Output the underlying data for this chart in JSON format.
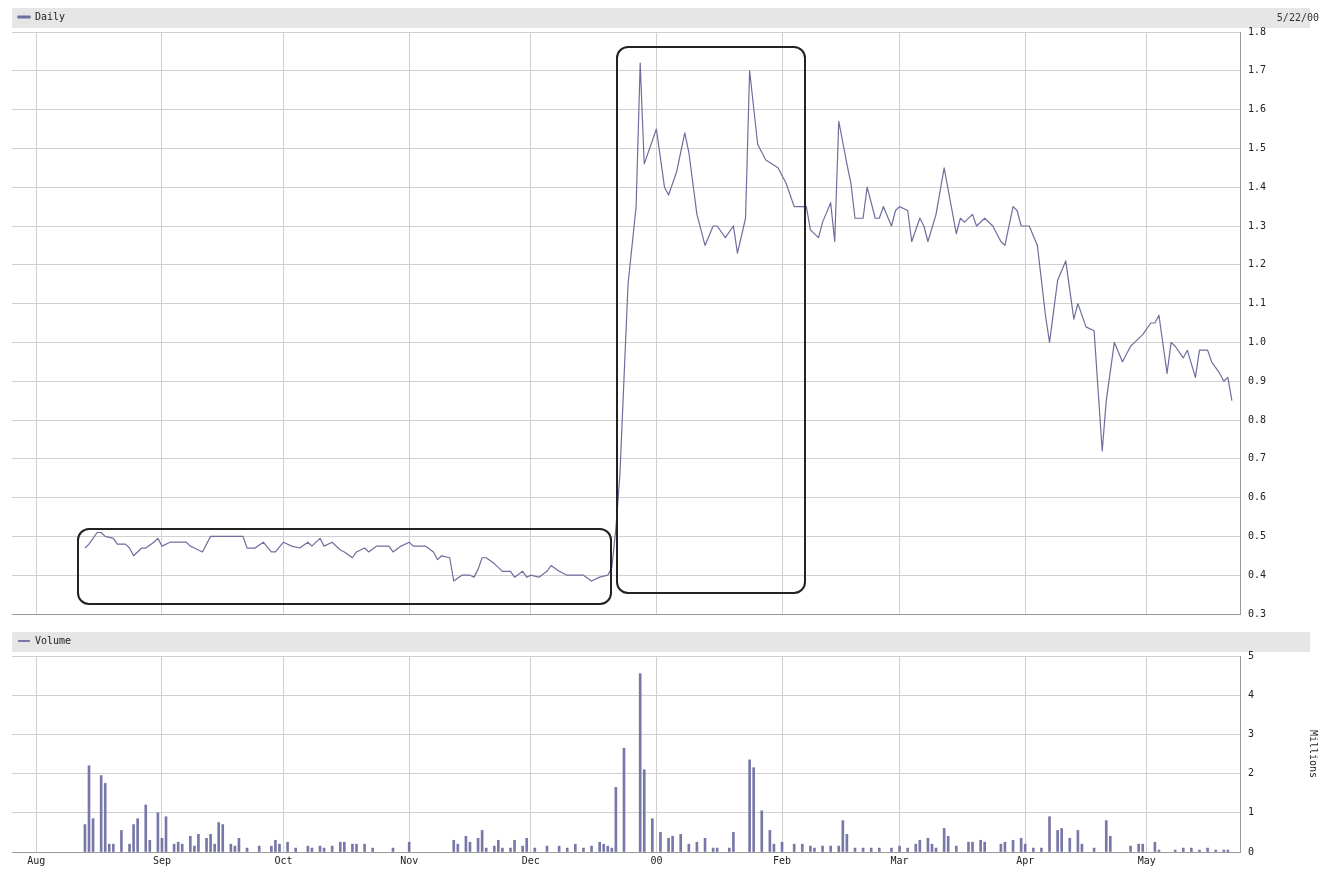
{
  "chart_data": [
    {
      "type": "line",
      "annotations": [
        "5/22/00"
      ],
      "legend": "top left",
      "grid": true,
      "tick_labels": "y",
      "marker": "none",
      "line_style": "solid",
      "xlim": [
        "1999-07-26",
        "2000-05-24"
      ],
      "xticks": [
        {
          "value": "1999-08-01",
          "label": null
        },
        {
          "value": "1999-09-01",
          "label": null
        },
        {
          "value": "1999-10-01",
          "label": null
        },
        {
          "value": "1999-11-01",
          "label": null
        },
        {
          "value": "1999-12-01",
          "label": null
        },
        {
          "value": "2000-01-01",
          "label": null
        },
        {
          "value": "2000-02-01",
          "label": null
        },
        {
          "value": "2000-03-01",
          "label": null
        },
        {
          "value": "2000-04-01",
          "label": null
        },
        {
          "value": "2000-05-01",
          "label": null
        }
      ],
      "ylim": [
        0.3,
        1.8
      ],
      "yticks": [
        0.3,
        0.4,
        0.5,
        0.6,
        0.7,
        0.8,
        0.9,
        {
          "value": 1.0,
          "label": "1.0"
        },
        1.1,
        1.2,
        1.3,
        1.4,
        1.5,
        1.6,
        1.7,
        1.8
      ],
      "series": [
        {
          "name": "Daily",
          "color": "#6e6e9e",
          "x": [
            "1999-08-13",
            "1999-08-14",
            "1999-08-16",
            "1999-08-17",
            "1999-08-18",
            "1999-08-20",
            "1999-08-21",
            "1999-08-23",
            "1999-08-24",
            "1999-08-25",
            "1999-08-27",
            "1999-08-28",
            "1999-08-30",
            "1999-08-31",
            "1999-09-01",
            "1999-09-03",
            "1999-09-07",
            "1999-09-08",
            "1999-09-09",
            "1999-09-11",
            "1999-09-13",
            "1999-09-15",
            "1999-09-17",
            "1999-09-21",
            "1999-09-22",
            "1999-09-24",
            "1999-09-26",
            "1999-09-28",
            "1999-09-29",
            "1999-10-01",
            "1999-10-03",
            "1999-10-05",
            "1999-10-07",
            "1999-10-08",
            "1999-10-10",
            "1999-10-11",
            "1999-10-13",
            "1999-10-15",
            "1999-10-16",
            "1999-10-18",
            "1999-10-19",
            "1999-10-21",
            "1999-10-22",
            "1999-10-24",
            "1999-10-27",
            "1999-10-28",
            "1999-10-30",
            "1999-11-01",
            "1999-11-02",
            "1999-11-05",
            "1999-11-07",
            "1999-11-08",
            "1999-11-09",
            "1999-11-11",
            "1999-11-12",
            "1999-11-14",
            "1999-11-16",
            "1999-11-17",
            "1999-11-18",
            "1999-11-19",
            "1999-11-20",
            "1999-11-22",
            "1999-11-24",
            "1999-11-26",
            "1999-11-27",
            "1999-11-29",
            "1999-11-30",
            "1999-12-01",
            "1999-12-03",
            "1999-12-05",
            "1999-12-06",
            "1999-12-08",
            "1999-12-10",
            "1999-12-14",
            "1999-12-16",
            "1999-12-18",
            "1999-12-20",
            "1999-12-21",
            "1999-12-22",
            "1999-12-23",
            "1999-12-25",
            "1999-12-27",
            "1999-12-28",
            "1999-12-29",
            "2000-01-01",
            "2000-01-03",
            "2000-01-04",
            "2000-01-06",
            "2000-01-08",
            "2000-01-09",
            "2000-01-11",
            "2000-01-13",
            "2000-01-15",
            "2000-01-16",
            "2000-01-18",
            "2000-01-20",
            "2000-01-21",
            "2000-01-23",
            "2000-01-24",
            "2000-01-26",
            "2000-01-28",
            "2000-01-31",
            "2000-02-02",
            "2000-02-04",
            "2000-02-07",
            "2000-02-08",
            "2000-02-10",
            "2000-02-11",
            "2000-02-13",
            "2000-02-14",
            "2000-02-15",
            "2000-02-17",
            "2000-02-18",
            "2000-02-19",
            "2000-02-21",
            "2000-02-22",
            "2000-02-24",
            "2000-02-25",
            "2000-02-26",
            "2000-02-28",
            "2000-02-29",
            "2000-03-01",
            "2000-03-03",
            "2000-03-04",
            "2000-03-06",
            "2000-03-07",
            "2000-03-08",
            "2000-03-10",
            "2000-03-12",
            "2000-03-15",
            "2000-03-16",
            "2000-03-17",
            "2000-03-19",
            "2000-03-20",
            "2000-03-22",
            "2000-03-24",
            "2000-03-26",
            "2000-03-27",
            "2000-03-29",
            "2000-03-30",
            "2000-03-31",
            "2000-04-02",
            "2000-04-04",
            "2000-04-06",
            "2000-04-07",
            "2000-04-09",
            "2000-04-11",
            "2000-04-13",
            "2000-04-14",
            "2000-04-16",
            "2000-04-18",
            "2000-04-20",
            "2000-04-21",
            "2000-04-23",
            "2000-04-25",
            "2000-04-27",
            "2000-04-28",
            "2000-04-30",
            "2000-05-02",
            "2000-05-03",
            "2000-05-04",
            "2000-05-06",
            "2000-05-07",
            "2000-05-08",
            "2000-05-10",
            "2000-05-11",
            "2000-05-13",
            "2000-05-14",
            "2000-05-16",
            "2000-05-17",
            "2000-05-19",
            "2000-05-20",
            "2000-05-21",
            "2000-05-22"
          ],
          "values": [
            0.47,
            0.48,
            0.51,
            0.51,
            0.5,
            0.495,
            0.48,
            0.48,
            0.47,
            0.45,
            0.47,
            0.47,
            0.485,
            0.495,
            0.475,
            0.485,
            0.485,
            0.475,
            0.47,
            0.46,
            0.5,
            0.5,
            0.5,
            0.5,
            0.47,
            0.47,
            0.485,
            0.46,
            0.46,
            0.485,
            0.475,
            0.47,
            0.485,
            0.475,
            0.495,
            0.475,
            0.485,
            0.465,
            0.46,
            0.445,
            0.46,
            0.47,
            0.46,
            0.475,
            0.475,
            0.46,
            0.475,
            0.485,
            0.475,
            0.475,
            0.46,
            0.44,
            0.45,
            0.445,
            0.385,
            0.4,
            0.4,
            0.395,
            0.415,
            0.445,
            0.445,
            0.43,
            0.41,
            0.41,
            0.395,
            0.41,
            0.395,
            0.4,
            0.395,
            0.41,
            0.425,
            0.41,
            0.4,
            0.4,
            0.385,
            0.395,
            0.4,
            0.42,
            0.52,
            0.66,
            1.15,
            1.35,
            1.72,
            1.46,
            1.55,
            1.4,
            1.38,
            1.44,
            1.54,
            1.49,
            1.33,
            1.25,
            1.3,
            1.3,
            1.27,
            1.3,
            1.23,
            1.32,
            1.7,
            1.51,
            1.47,
            1.45,
            1.41,
            1.35,
            1.35,
            1.29,
            1.27,
            1.31,
            1.36,
            1.26,
            1.57,
            1.46,
            1.41,
            1.32,
            1.32,
            1.4,
            1.32,
            1.32,
            1.35,
            1.3,
            1.34,
            1.35,
            1.34,
            1.26,
            1.32,
            1.3,
            1.26,
            1.33,
            1.45,
            1.28,
            1.32,
            1.31,
            1.33,
            1.3,
            1.32,
            1.3,
            1.26,
            1.25,
            1.35,
            1.34,
            1.3,
            1.3,
            1.25,
            1.07,
            1.0,
            1.16,
            1.21,
            1.06,
            1.1,
            1.04,
            1.03,
            0.72,
            0.85,
            1.0,
            0.95,
            0.99,
            1.0,
            1.02,
            1.05,
            1.05,
            1.07,
            0.92,
            1.0,
            0.99,
            0.96,
            0.98,
            0.91,
            0.98,
            0.98,
            0.95,
            0.92,
            0.9,
            0.91,
            0.85
          ]
        }
      ]
    },
    {
      "type": "bar",
      "ylabel": "Millions",
      "legend": "top left",
      "grid": true,
      "xlim": [
        "1999-07-26",
        "2000-05-24"
      ],
      "xticks": [
        {
          "value": "1999-08-01",
          "label": "Aug"
        },
        {
          "value": "1999-09-01",
          "label": "Sep"
        },
        {
          "value": "1999-10-01",
          "label": "Oct"
        },
        {
          "value": "1999-11-01",
          "label": "Nov"
        },
        {
          "value": "1999-12-01",
          "label": "Dec"
        },
        {
          "value": "2000-01-01",
          "label": "00"
        },
        {
          "value": "2000-02-01",
          "label": "Feb"
        },
        {
          "value": "2000-03-01",
          "label": "Mar"
        },
        {
          "value": "2000-04-01",
          "label": "Apr"
        },
        {
          "value": "2000-05-01",
          "label": "May"
        }
      ],
      "ylim": [
        0,
        5
      ],
      "yticks": [
        0,
        1,
        2,
        3,
        4,
        5
      ],
      "series": [
        {
          "name": "Volume",
          "color": "#7878a8",
          "x": [
            "1999-08-13",
            "1999-08-14",
            "1999-08-15",
            "1999-08-17",
            "1999-08-18",
            "1999-08-19",
            "1999-08-20",
            "1999-08-22",
            "1999-08-24",
            "1999-08-25",
            "1999-08-26",
            "1999-08-28",
            "1999-08-29",
            "1999-08-31",
            "1999-09-01",
            "1999-09-02",
            "1999-09-04",
            "1999-09-05",
            "1999-09-06",
            "1999-09-08",
            "1999-09-09",
            "1999-09-10",
            "1999-09-12",
            "1999-09-13",
            "1999-09-14",
            "1999-09-15",
            "1999-09-16",
            "1999-09-18",
            "1999-09-19",
            "1999-09-20",
            "1999-09-22",
            "1999-09-25",
            "1999-09-28",
            "1999-09-29",
            "1999-09-30",
            "1999-10-02",
            "1999-10-04",
            "1999-10-07",
            "1999-10-08",
            "1999-10-10",
            "1999-10-11",
            "1999-10-13",
            "1999-10-15",
            "1999-10-16",
            "1999-10-18",
            "1999-10-19",
            "1999-10-21",
            "1999-10-23",
            "1999-10-28",
            "1999-11-01",
            "1999-11-12",
            "1999-11-13",
            "1999-11-15",
            "1999-11-16",
            "1999-11-18",
            "1999-11-19",
            "1999-11-20",
            "1999-11-22",
            "1999-11-23",
            "1999-11-24",
            "1999-11-26",
            "1999-11-27",
            "1999-11-29",
            "1999-11-30",
            "1999-12-02",
            "1999-12-05",
            "1999-12-08",
            "1999-12-10",
            "1999-12-12",
            "1999-12-14",
            "1999-12-16",
            "1999-12-18",
            "1999-12-19",
            "1999-12-20",
            "1999-12-21",
            "1999-12-22",
            "1999-12-24",
            "1999-12-28",
            "1999-12-29",
            "1999-12-31",
            "2000-01-02",
            "2000-01-04",
            "2000-01-05",
            "2000-01-07",
            "2000-01-09",
            "2000-01-11",
            "2000-01-13",
            "2000-01-15",
            "2000-01-16",
            "2000-01-19",
            "2000-01-20",
            "2000-01-24",
            "2000-01-25",
            "2000-01-27",
            "2000-01-29",
            "2000-01-30",
            "2000-02-01",
            "2000-02-04",
            "2000-02-06",
            "2000-02-08",
            "2000-02-09",
            "2000-02-11",
            "2000-02-13",
            "2000-02-15",
            "2000-02-16",
            "2000-02-17",
            "2000-02-19",
            "2000-02-21",
            "2000-02-23",
            "2000-02-25",
            "2000-02-28",
            "2000-03-01",
            "2000-03-03",
            "2000-03-05",
            "2000-03-06",
            "2000-03-08",
            "2000-03-09",
            "2000-03-10",
            "2000-03-12",
            "2000-03-13",
            "2000-03-15",
            "2000-03-18",
            "2000-03-19",
            "2000-03-21",
            "2000-03-22",
            "2000-03-26",
            "2000-03-27",
            "2000-03-29",
            "2000-03-31",
            "2000-04-01",
            "2000-04-03",
            "2000-04-05",
            "2000-04-07",
            "2000-04-09",
            "2000-04-10",
            "2000-04-12",
            "2000-04-14",
            "2000-04-15",
            "2000-04-18",
            "2000-04-21",
            "2000-04-22",
            "2000-04-27",
            "2000-04-29",
            "2000-04-30",
            "2000-05-03",
            "2000-05-04",
            "2000-05-08",
            "2000-05-10",
            "2000-05-12",
            "2000-05-14",
            "2000-05-16",
            "2000-05-18",
            "2000-05-20",
            "2000-05-21"
          ],
          "values": [
            0.7,
            2.2,
            0.85,
            1.95,
            1.75,
            0.2,
            0.2,
            0.55,
            0.2,
            0.7,
            0.85,
            1.2,
            0.3,
            1.0,
            0.35,
            0.9,
            0.2,
            0.25,
            0.2,
            0.4,
            0.15,
            0.45,
            0.35,
            0.45,
            0.2,
            0.75,
            0.7,
            0.2,
            0.15,
            0.35,
            0.1,
            0.15,
            0.15,
            0.3,
            0.2,
            0.25,
            0.1,
            0.15,
            0.1,
            0.15,
            0.1,
            0.15,
            0.25,
            0.25,
            0.2,
            0.2,
            0.2,
            0.1,
            0.1,
            0.25,
            0.3,
            0.2,
            0.4,
            0.25,
            0.35,
            0.55,
            0.1,
            0.15,
            0.3,
            0.1,
            0.1,
            0.3,
            0.15,
            0.35,
            0.1,
            0.15,
            0.15,
            0.1,
            0.2,
            0.1,
            0.15,
            0.25,
            0.2,
            0.15,
            0.1,
            1.65,
            2.65,
            4.55,
            2.1,
            0.85,
            0.5,
            0.35,
            0.4,
            0.45,
            0.2,
            0.25,
            0.35,
            0.1,
            0.1,
            0.1,
            0.5,
            2.35,
            2.15,
            1.05,
            0.55,
            0.2,
            0.25,
            0.2,
            0.2,
            0.15,
            0.1,
            0.15,
            0.15,
            0.15,
            0.8,
            0.45,
            0.1,
            0.1,
            0.1,
            0.1,
            0.1,
            0.15,
            0.1,
            0.2,
            0.3,
            0.35,
            0.2,
            0.1,
            0.6,
            0.4,
            0.15,
            0.25,
            0.25,
            0.3,
            0.25,
            0.2,
            0.25,
            0.3,
            0.35,
            0.2,
            0.1,
            0.1,
            0.9,
            0.55,
            0.6,
            0.35,
            0.55,
            0.2,
            0.1,
            0.8,
            0.4,
            0.15,
            0.2,
            0.2,
            0.25,
            0.05,
            0.05,
            0.1,
            0.1,
            0.05,
            0.1,
            0.05,
            0.05,
            0.05
          ]
        }
      ]
    }
  ]
}
